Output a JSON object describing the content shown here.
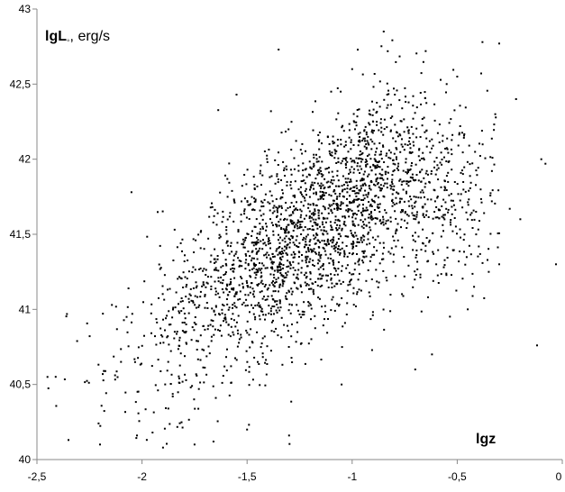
{
  "chart_data": {
    "type": "scatter",
    "title": "",
    "xlabel": "lgz",
    "ylabel": "lgL",
    "ylabel_subscript": "◦",
    "ylabel_unit": ", erg/s",
    "xlim": [
      -2.5,
      0
    ],
    "ylim": [
      40,
      43
    ],
    "x_ticks": [
      -2.5,
      -2,
      -1.5,
      -1,
      -0.5,
      0
    ],
    "x_tick_labels": [
      "-2,5",
      "-2",
      "-1,5",
      "-1",
      "-0,5",
      "0"
    ],
    "y_ticks": [
      40,
      40.5,
      41,
      41.5,
      42,
      42.5,
      43
    ],
    "y_tick_labels": [
      "40",
      "40,5",
      "41",
      "41,5",
      "42",
      "42,5",
      "43"
    ],
    "grid": false,
    "legend": "none",
    "point_color": "#000000",
    "axis_color": "#888888",
    "n_points": 2600,
    "x_range": [
      -2.45,
      -0.03
    ],
    "y_range": [
      40.05,
      42.85
    ],
    "cloud_center": [
      -1.15,
      41.6
    ],
    "trend": "y rises from about 40.5 at lgz=-2.4 to about 41.9 at lgz=-0.8, then levels off near 41.7 toward lgz=-0.3",
    "outliers": [
      [
        -2.45,
        40.55
      ],
      [
        -2.35,
        40.13
      ],
      [
        -2.2,
        40.1
      ],
      [
        -1.9,
        40.08
      ],
      [
        -1.66,
        40.12
      ],
      [
        -1.3,
        40.16
      ],
      [
        -1.05,
        40.5
      ],
      [
        -0.7,
        40.6
      ],
      [
        -0.62,
        40.7
      ],
      [
        -0.45,
        41.0
      ],
      [
        -0.42,
        41.15
      ],
      [
        -0.12,
        40.76
      ],
      [
        -0.03,
        41.3
      ],
      [
        -0.1,
        42.0
      ],
      [
        -0.08,
        41.97
      ],
      [
        -0.22,
        42.4
      ],
      [
        -0.38,
        42.78
      ],
      [
        -0.3,
        42.77
      ],
      [
        -0.85,
        42.85
      ],
      [
        -1.35,
        42.73
      ],
      [
        -2.05,
        41.78
      ],
      [
        -0.2,
        41.6
      ],
      [
        -0.25,
        41.67
      ],
      [
        -0.55,
        42.5
      ],
      [
        -0.65,
        42.72
      ],
      [
        -1.0,
        42.6
      ],
      [
        -0.5,
        42.55
      ],
      [
        -1.1,
        42.45
      ],
      [
        -1.55,
        42.43
      ],
      [
        -0.3,
        41.3
      ],
      [
        -0.35,
        41.25
      ],
      [
        -0.6,
        41.3
      ],
      [
        -1.5,
        40.2
      ],
      [
        -1.75,
        40.1
      ],
      [
        -1.95,
        40.18
      ]
    ]
  }
}
